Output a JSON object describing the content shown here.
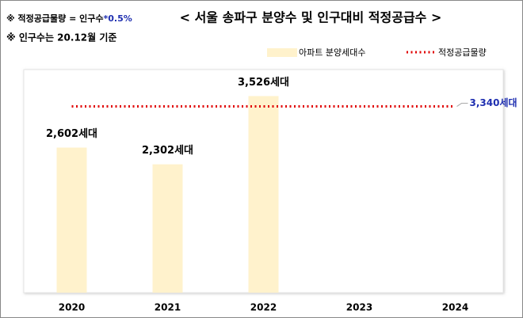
{
  "chart_data": {
    "type": "bar",
    "title": "< 서울 송파구 분양수 및 인구대비 적정공급수 >",
    "annotations": [
      "※ 적정공급물량 = 인구수",
      "*0.5%",
      "※ 인구수는 20.12월 기준"
    ],
    "categories": [
      "2020",
      "2021",
      "2022",
      "2023",
      "2024"
    ],
    "ylim": [
      0,
      4000
    ],
    "series": [
      {
        "name": "아파트 분양세대수",
        "type": "bar",
        "color": "#fff2cc",
        "values": [
          2602,
          2302,
          3526,
          null,
          null
        ],
        "value_labels": [
          "2,602세대",
          "2,302세대",
          "3,526세대",
          null,
          null
        ]
      },
      {
        "name": "적정공급물량",
        "type": "line",
        "color": "#e00000",
        "label_color": "#1f2fb0",
        "values": [
          3340,
          3340,
          3340,
          3340,
          3340
        ],
        "value_labels": [
          null,
          null,
          null,
          null,
          "3,340세대"
        ]
      }
    ]
  }
}
